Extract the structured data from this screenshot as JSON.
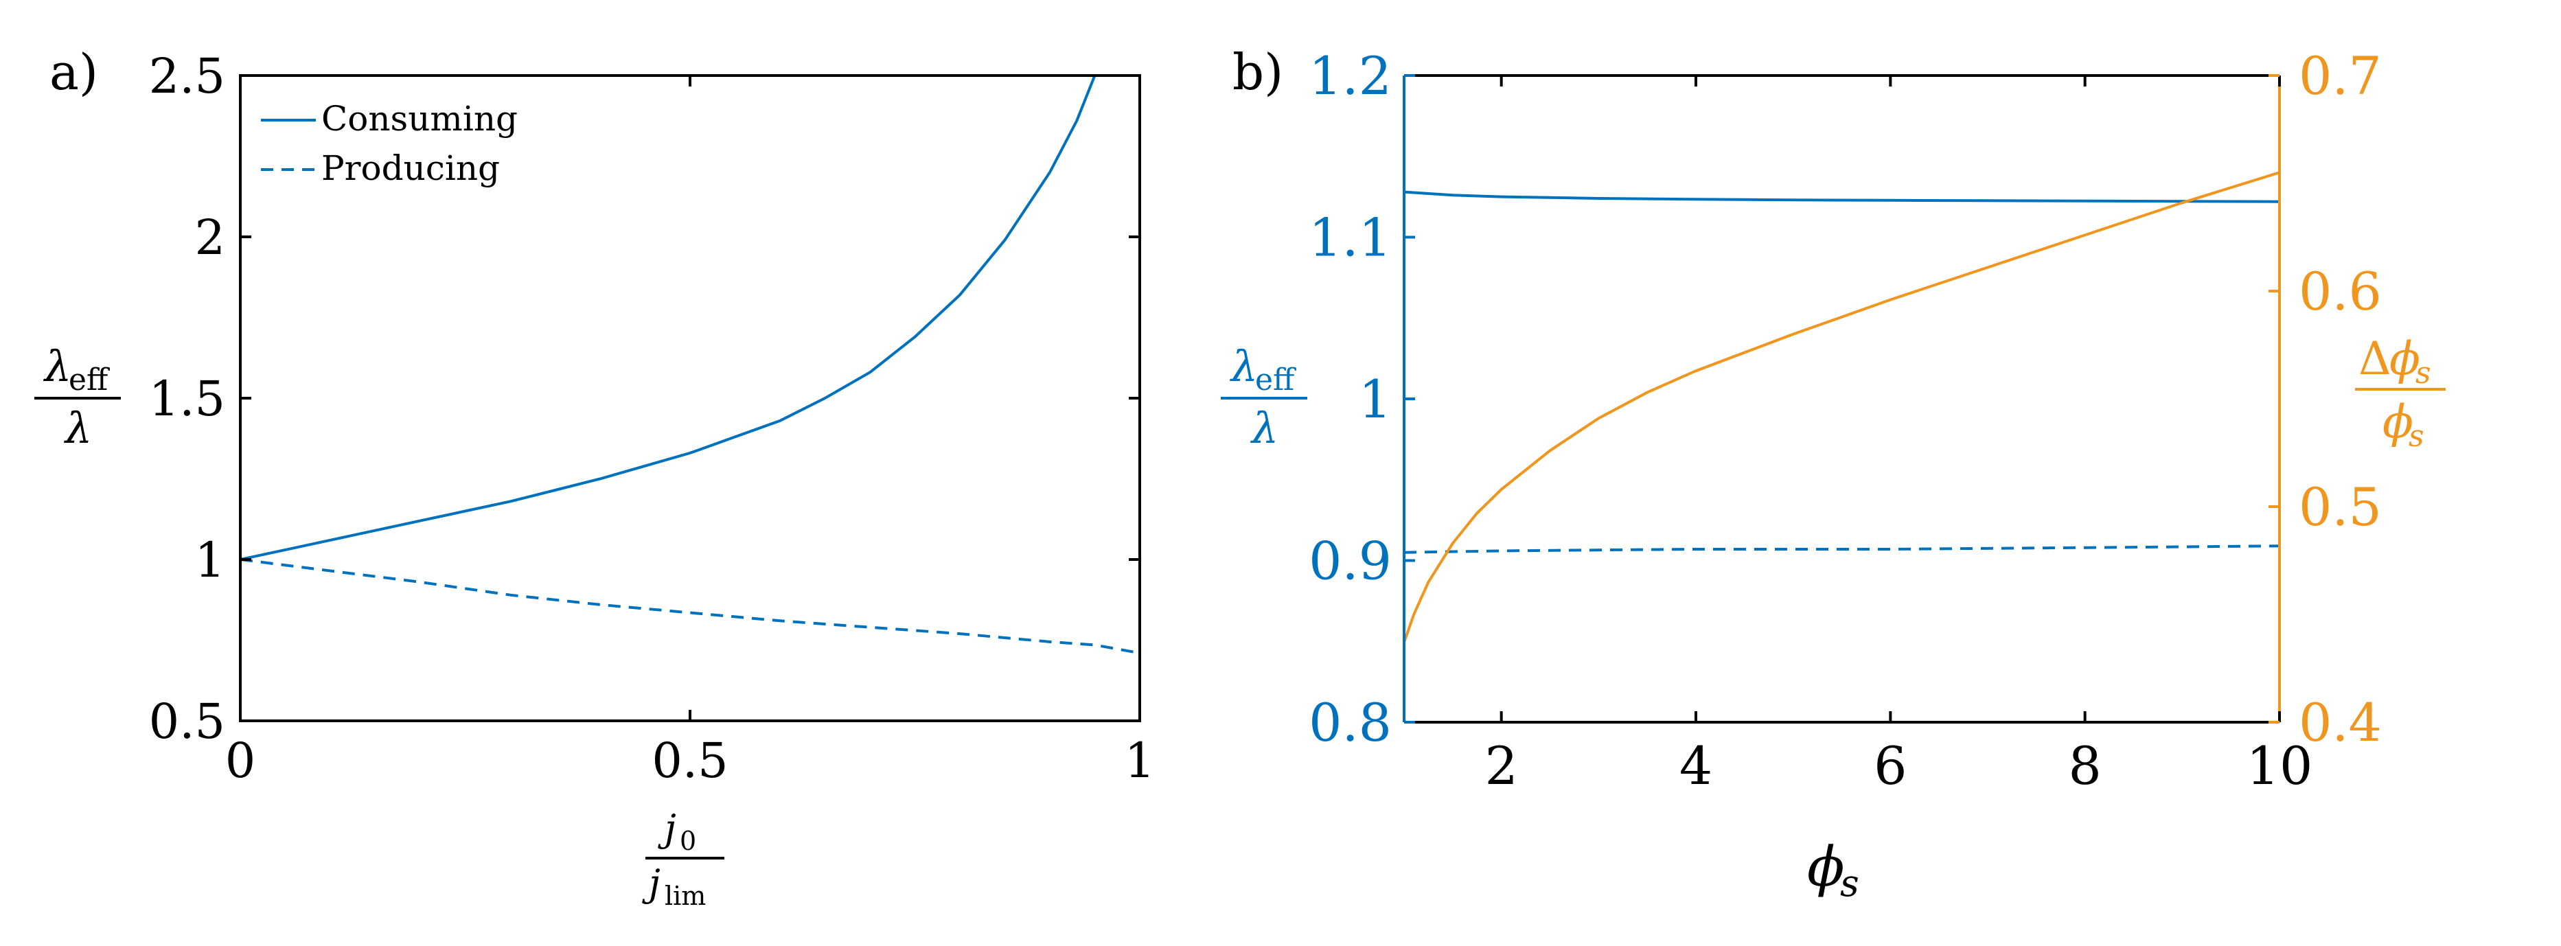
{
  "colors": {
    "blue": "#0072BD",
    "orange": "#EDB120",
    "orange_line": "#F0961E",
    "axis": "#000000"
  },
  "chart_data": [
    {
      "panel_label": "a)",
      "type": "line",
      "xlabel": {
        "num": "j",
        "num_sub": "0",
        "den": "j",
        "den_sub": "lim"
      },
      "ylabel": {
        "num": "λ",
        "num_sub": "eff",
        "den": "λ"
      },
      "xlim": [
        0,
        1
      ],
      "ylim": [
        0.5,
        2.5
      ],
      "xticks": [
        0,
        0.5,
        1
      ],
      "xtick_labels": [
        "0",
        "0.5",
        "1"
      ],
      "yticks": [
        0.5,
        1,
        1.5,
        2,
        2.5
      ],
      "ytick_labels": [
        "0.5",
        "1",
        "1.5",
        "2",
        "2.5"
      ],
      "grid": false,
      "legend_position": "top-left",
      "series": [
        {
          "name": "Consuming",
          "style": "solid",
          "x": [
            0,
            0.05,
            0.1,
            0.15,
            0.2,
            0.25,
            0.3,
            0.35,
            0.4,
            0.45,
            0.5,
            0.55,
            0.6,
            0.65,
            0.7,
            0.75,
            0.8,
            0.85,
            0.9,
            0.93,
            0.95
          ],
          "y": [
            1.0,
            1.03,
            1.06,
            1.09,
            1.12,
            1.15,
            1.18,
            1.215,
            1.25,
            1.29,
            1.33,
            1.38,
            1.43,
            1.5,
            1.58,
            1.69,
            1.82,
            1.99,
            2.2,
            2.36,
            2.5
          ]
        },
        {
          "name": "Producing",
          "style": "dashed",
          "x": [
            0,
            0.1,
            0.2,
            0.3,
            0.4,
            0.5,
            0.6,
            0.7,
            0.8,
            0.9,
            0.95,
            1.0
          ],
          "y": [
            1.0,
            0.965,
            0.93,
            0.89,
            0.86,
            0.835,
            0.81,
            0.79,
            0.77,
            0.745,
            0.735,
            0.71
          ]
        }
      ]
    },
    {
      "panel_label": "b)",
      "type": "line",
      "xlabel": {
        "sym": "ϕ",
        "sub": "s"
      },
      "ylabel_left": {
        "num": "λ",
        "num_sub": "eff",
        "den": "λ"
      },
      "ylabel_right": {
        "num_pre": "Δ",
        "num": "ϕ",
        "num_sub": "s",
        "den": "ϕ",
        "den_sub": "s"
      },
      "xlim": [
        1,
        10
      ],
      "ylim_left": [
        0.8,
        1.2
      ],
      "ylim_right": [
        0.4,
        0.7
      ],
      "xticks": [
        2,
        4,
        6,
        8,
        10
      ],
      "xtick_labels": [
        "2",
        "4",
        "6",
        "8",
        "10"
      ],
      "yticks_left": [
        0.8,
        0.9,
        1.0,
        1.1,
        1.2
      ],
      "ytick_labels_left": [
        "0.8",
        "0.9",
        "1",
        "1.1",
        "1.2"
      ],
      "yticks_right": [
        0.4,
        0.5,
        0.6,
        0.7
      ],
      "ytick_labels_right": [
        "0.4",
        "0.5",
        "0.6",
        "0.7"
      ],
      "grid": false,
      "series": [
        {
          "axis": "left",
          "style": "solid",
          "x": [
            1,
            1.5,
            2,
            3,
            4,
            5,
            6,
            7,
            8,
            9,
            10
          ],
          "y": [
            1.128,
            1.126,
            1.125,
            1.124,
            1.1235,
            1.123,
            1.1228,
            1.1226,
            1.1224,
            1.1222,
            1.122
          ]
        },
        {
          "axis": "left",
          "style": "dashed",
          "x": [
            1,
            2,
            4,
            6,
            8,
            10
          ],
          "y": [
            0.905,
            0.906,
            0.907,
            0.907,
            0.908,
            0.909
          ]
        },
        {
          "axis": "right",
          "style": "solid",
          "x": [
            1,
            1.1,
            1.25,
            1.5,
            1.75,
            2,
            2.5,
            3,
            3.5,
            4,
            5,
            6,
            7,
            8,
            9,
            10
          ],
          "y": [
            0.437,
            0.45,
            0.465,
            0.483,
            0.497,
            0.508,
            0.526,
            0.541,
            0.553,
            0.563,
            0.58,
            0.596,
            0.611,
            0.626,
            0.641,
            0.655
          ]
        }
      ]
    }
  ]
}
